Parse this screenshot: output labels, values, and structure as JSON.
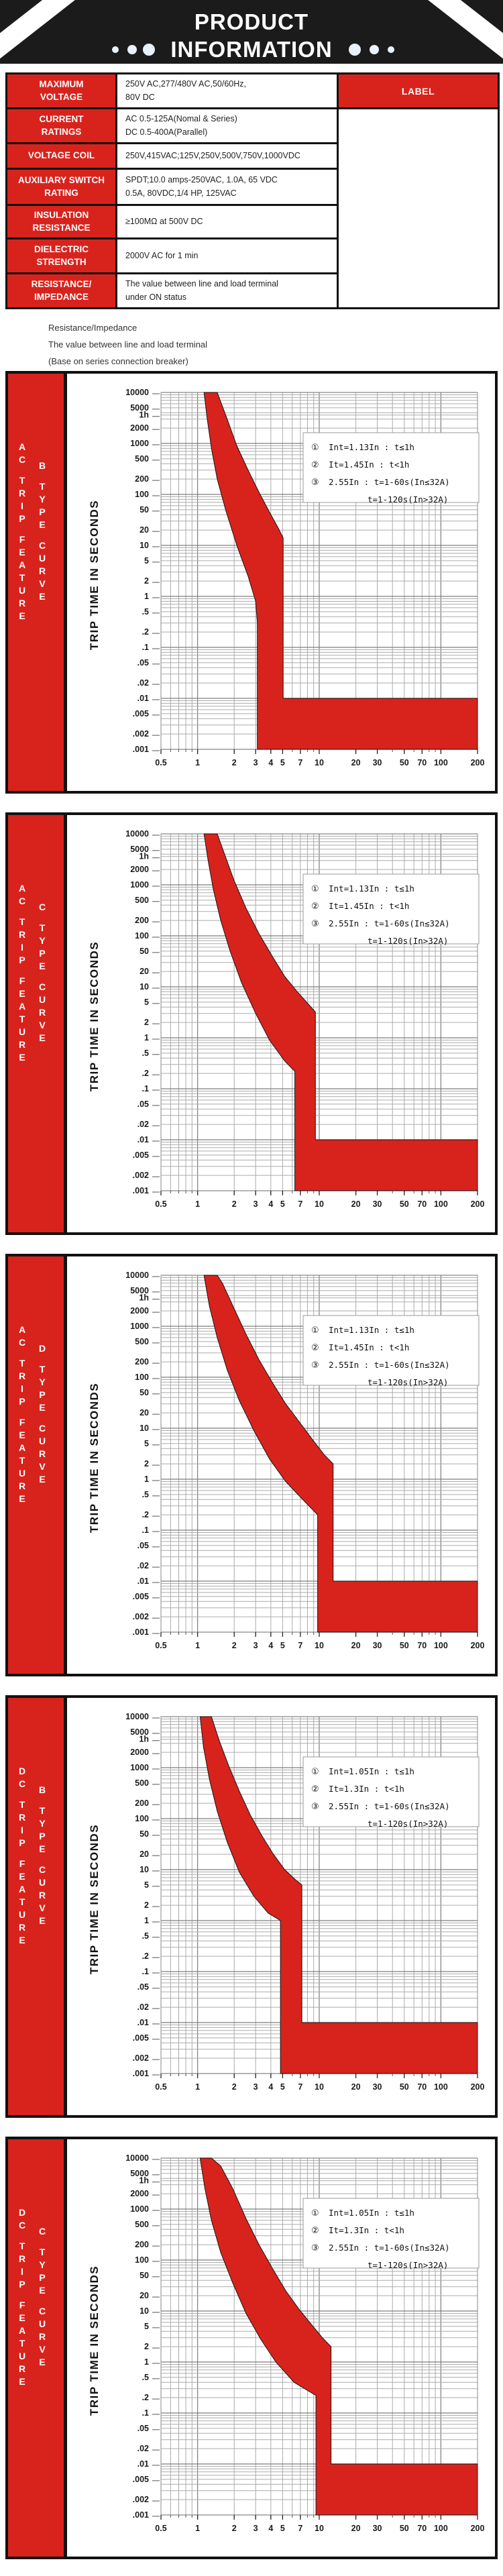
{
  "colors": {
    "red": "#d8231d",
    "black": "#1b1b1b",
    "grid_minor": "#ababab",
    "grid_major": "#7d7d7d"
  },
  "header": {
    "title_line1": "PRODUCT",
    "title_line2": "INFORMATION",
    "decor": {
      "left_dots": 3,
      "right_dots": 3,
      "stripes": "white-diagonal-corners"
    }
  },
  "spec_table": {
    "side_label": "LABEL",
    "rows": [
      {
        "label": "MAXIMUM\nVOLTAGE",
        "value": "250V AC,277/480V AC,50/60Hz,\n80V DC"
      },
      {
        "label": "CURRENT\nRATINGS",
        "value": "AC 0.5-125A(Nomal & Series)\nDC 0.5-400A(Parallel)"
      },
      {
        "label": "VOLTAGE COIL",
        "value": "250V,415VAC;125V,250V,500V,750V,1000VDC"
      },
      {
        "label": "AUXILIARY SWITCH\nRATING",
        "value": "SPDT;10.0 amps-250VAC, 1.0A, 65 VDC\n0.5A, 80VDC,1/4 HP, 125VAC"
      },
      {
        "label": "INSULATION\nRESISTANCE",
        "value": "≥100MΩ at 500V DC"
      },
      {
        "label": "DIELECTRIC\nSTRENGTH",
        "value": "2000V AC for 1 min"
      },
      {
        "label": "RESISTANCE/\nIMPEDANCE",
        "value": "The value between line and load terminal\nunder ON status"
      }
    ]
  },
  "notes": [
    "Resistance/Impedance",
    "The value between line and load terminal",
    "(Base on series connection breaker)"
  ],
  "chart_data": [
    {
      "id": "ac-trip-b-curve",
      "type": "area",
      "sidebar_line1": "AC TRIP FEATURE",
      "sidebar_line2": "B TYPE CURVE",
      "ylabel": "TRIP TIME IN SECONDS",
      "xlim": [
        0.5,
        200
      ],
      "ylim": [
        0.001,
        10000
      ],
      "grid": true,
      "x_tick_labels": [
        "0.5",
        "1",
        "2",
        "3",
        "4",
        "5",
        "7",
        "10",
        "20",
        "30",
        "50",
        "70",
        "100",
        "200"
      ],
      "y_tick_labels": [
        "10000",
        "5000",
        "1h",
        "2000",
        "1000",
        "500",
        "200",
        "100",
        "50",
        "20",
        "10",
        "5",
        "2",
        "1",
        ".5",
        ".2",
        ".1",
        ".05",
        ".02",
        ".01",
        ".005",
        ".002",
        ".001"
      ],
      "legend": [
        {
          "n": "①",
          "t": "Int=1.13In : t≤1h"
        },
        {
          "n": "②",
          "t": "It=1.45In : t<1h"
        },
        {
          "n": "③",
          "t": "2.55In : t=1-60s(In≤32A)"
        },
        {
          "n": "",
          "t": "t=1-120s(In>32A)"
        }
      ],
      "band": [
        [
          1.13,
          10000
        ],
        [
          1.2,
          3000
        ],
        [
          1.3,
          800
        ],
        [
          1.45,
          200
        ],
        [
          1.7,
          50
        ],
        [
          2.1,
          10
        ],
        [
          2.6,
          2.5
        ],
        [
          3.0,
          0.8
        ],
        [
          3.1,
          0.3
        ],
        [
          3.1,
          0.001
        ],
        [
          200,
          0.001
        ],
        [
          200,
          0.01
        ],
        [
          5.05,
          0.01
        ],
        [
          5.05,
          14
        ],
        [
          4.6,
          22
        ],
        [
          3.9,
          45
        ],
        [
          3.2,
          110
        ],
        [
          2.6,
          300
        ],
        [
          2.1,
          900
        ],
        [
          1.75,
          3000
        ],
        [
          1.45,
          10000
        ]
      ]
    },
    {
      "id": "ac-trip-c-curve",
      "type": "area",
      "sidebar_line1": "AC TRIP FEATURE",
      "sidebar_line2": "C TYPE CURVE",
      "ylabel": "TRIP TIME IN SECONDS",
      "xlim": [
        0.5,
        200
      ],
      "ylim": [
        0.001,
        10000
      ],
      "grid": true,
      "x_tick_labels": [
        "0.5",
        "1",
        "2",
        "3",
        "4",
        "5",
        "7",
        "10",
        "20",
        "30",
        "50",
        "70",
        "100",
        "200"
      ],
      "y_tick_labels": [
        "10000",
        "5000",
        "1h",
        "2000",
        "1000",
        "500",
        "200",
        "100",
        "50",
        "20",
        "10",
        "5",
        "2",
        "1",
        ".5",
        ".2",
        ".1",
        ".05",
        ".02",
        ".01",
        ".005",
        ".002",
        ".001"
      ],
      "legend": [
        {
          "n": "①",
          "t": "Int=1.13In : t≤1h"
        },
        {
          "n": "②",
          "t": "It=1.45In : t<1h"
        },
        {
          "n": "③",
          "t": "2.55In : t=1-60s(In≤32A)"
        },
        {
          "n": "",
          "t": "t=1-120s(In>32A)"
        }
      ],
      "band": [
        [
          1.13,
          10000
        ],
        [
          1.22,
          3000
        ],
        [
          1.35,
          800
        ],
        [
          1.55,
          200
        ],
        [
          1.85,
          50
        ],
        [
          2.3,
          12
        ],
        [
          3.0,
          3
        ],
        [
          3.9,
          0.9
        ],
        [
          5.2,
          0.35
        ],
        [
          6.3,
          0.22
        ],
        [
          6.3,
          0.001
        ],
        [
          200,
          0.001
        ],
        [
          200,
          0.01
        ],
        [
          9.3,
          0.01
        ],
        [
          9.3,
          3.2
        ],
        [
          8.2,
          4.5
        ],
        [
          6.6,
          8
        ],
        [
          5.2,
          16
        ],
        [
          4.1,
          40
        ],
        [
          3.2,
          110
        ],
        [
          2.5,
          350
        ],
        [
          2.0,
          1200
        ],
        [
          1.7,
          3500
        ],
        [
          1.45,
          10000
        ]
      ]
    },
    {
      "id": "ac-trip-d-curve",
      "type": "area",
      "sidebar_line1": "AC TRIP FEATURE",
      "sidebar_line2": "D TYPE CURVE",
      "ylabel": "TRIP TIME IN SECONDS",
      "xlim": [
        0.5,
        200
      ],
      "ylim": [
        0.001,
        10000
      ],
      "grid": true,
      "x_tick_labels": [
        "0.5",
        "1",
        "2",
        "3",
        "4",
        "5",
        "7",
        "10",
        "20",
        "30",
        "50",
        "70",
        "100",
        "200"
      ],
      "y_tick_labels": [
        "10000",
        "5000",
        "1h",
        "2000",
        "1000",
        "500",
        "200",
        "100",
        "50",
        "20",
        "10",
        "5",
        "2",
        "1",
        ".5",
        ".2",
        ".1",
        ".05",
        ".02",
        ".01",
        ".005",
        ".002",
        ".001"
      ],
      "legend": [
        {
          "n": "①",
          "t": "Int=1.13In : t≤1h"
        },
        {
          "n": "②",
          "t": "It=1.45In : t<1h"
        },
        {
          "n": "③",
          "t": "2.55In : t=1-60s(In≤32A)"
        },
        {
          "n": "",
          "t": "t=1-120s(In>32A)"
        }
      ],
      "band": [
        [
          1.13,
          10000
        ],
        [
          1.25,
          2500
        ],
        [
          1.45,
          600
        ],
        [
          1.75,
          140
        ],
        [
          2.2,
          35
        ],
        [
          2.9,
          9
        ],
        [
          3.9,
          2.5
        ],
        [
          5.3,
          0.9
        ],
        [
          7.3,
          0.4
        ],
        [
          9.7,
          0.2
        ],
        [
          9.7,
          0.001
        ],
        [
          200,
          0.001
        ],
        [
          200,
          0.01
        ],
        [
          13,
          0.01
        ],
        [
          13,
          2
        ],
        [
          11,
          3
        ],
        [
          8.8,
          6
        ],
        [
          6.9,
          13
        ],
        [
          5.3,
          30
        ],
        [
          4.1,
          80
        ],
        [
          3.2,
          220
        ],
        [
          2.5,
          700
        ],
        [
          2.0,
          2200
        ],
        [
          1.6,
          7000
        ],
        [
          1.45,
          10000
        ]
      ]
    },
    {
      "id": "dc-trip-b-curve",
      "type": "area",
      "sidebar_line1": "DC TRIP FEATURE",
      "sidebar_line2": "B TYPE CURVE",
      "ylabel": "TRIP TIME IN SECONDS",
      "xlim": [
        0.5,
        200
      ],
      "ylim": [
        0.001,
        10000
      ],
      "grid": true,
      "x_tick_labels": [
        "0.5",
        "1",
        "2",
        "3",
        "4",
        "5",
        "7",
        "10",
        "20",
        "30",
        "50",
        "70",
        "100",
        "200"
      ],
      "y_tick_labels": [
        "10000",
        "5000",
        "1h",
        "2000",
        "1000",
        "500",
        "200",
        "100",
        "50",
        "20",
        "10",
        "5",
        "2",
        "1",
        ".5",
        ".2",
        ".1",
        ".05",
        ".02",
        ".01",
        ".005",
        ".002",
        ".001"
      ],
      "legend": [
        {
          "n": "①",
          "t": "Int=1.05In : t≤1h"
        },
        {
          "n": "②",
          "t": "It=1.3In : t<1h"
        },
        {
          "n": "③",
          "t": "2.55In : t=1-60s(In≤32A)"
        },
        {
          "n": "",
          "t": "t=1-120s(In>32A)"
        }
      ],
      "band": [
        [
          1.05,
          10000
        ],
        [
          1.12,
          2500
        ],
        [
          1.25,
          600
        ],
        [
          1.45,
          140
        ],
        [
          1.75,
          35
        ],
        [
          2.2,
          9
        ],
        [
          2.9,
          3
        ],
        [
          3.8,
          1.4
        ],
        [
          4.8,
          1.0
        ],
        [
          4.8,
          0.001
        ],
        [
          200,
          0.001
        ],
        [
          200,
          0.01
        ],
        [
          7.2,
          0.01
        ],
        [
          7.2,
          5
        ],
        [
          6.3,
          6.5
        ],
        [
          5.2,
          10
        ],
        [
          4.2,
          20
        ],
        [
          3.4,
          45
        ],
        [
          2.7,
          120
        ],
        [
          2.2,
          350
        ],
        [
          1.8,
          1100
        ],
        [
          1.5,
          3500
        ],
        [
          1.3,
          10000
        ]
      ]
    },
    {
      "id": "dc-trip-c-curve",
      "type": "area",
      "sidebar_line1": "DC TRIP FEATURE",
      "sidebar_line2": "C TYPE CURVE",
      "ylabel": "TRIP TIME IN SECONDS",
      "xlim": [
        0.5,
        200
      ],
      "ylim": [
        0.001,
        10000
      ],
      "grid": true,
      "x_tick_labels": [
        "0.5",
        "1",
        "2",
        "3",
        "4",
        "5",
        "7",
        "10",
        "20",
        "30",
        "50",
        "70",
        "100",
        "200"
      ],
      "y_tick_labels": [
        "10000",
        "5000",
        "1h",
        "2000",
        "1000",
        "500",
        "200",
        "100",
        "50",
        "20",
        "10",
        "5",
        "2",
        "1",
        ".5",
        ".2",
        ".1",
        ".05",
        ".02",
        ".01",
        ".005",
        ".002",
        ".001"
      ],
      "legend": [
        {
          "n": "①",
          "t": "Int=1.05In : t≤1h"
        },
        {
          "n": "②",
          "t": "It=1.3In : t<1h"
        },
        {
          "n": "③",
          "t": "2.55In : t=1-60s(In≤32A)"
        },
        {
          "n": "",
          "t": "t=1-120s(In>32A)"
        }
      ],
      "band": [
        [
          1.05,
          10000
        ],
        [
          1.15,
          2500
        ],
        [
          1.3,
          600
        ],
        [
          1.55,
          140
        ],
        [
          1.95,
          35
        ],
        [
          2.5,
          9
        ],
        [
          3.3,
          2.8
        ],
        [
          4.4,
          1.0
        ],
        [
          6.2,
          0.4
        ],
        [
          9.4,
          0.22
        ],
        [
          9.4,
          0.001
        ],
        [
          200,
          0.001
        ],
        [
          200,
          0.01
        ],
        [
          12.5,
          0.01
        ],
        [
          12.5,
          2
        ],
        [
          10.6,
          3
        ],
        [
          8.6,
          5.5
        ],
        [
          6.8,
          11
        ],
        [
          5.3,
          25
        ],
        [
          4.1,
          70
        ],
        [
          3.2,
          200
        ],
        [
          2.5,
          650
        ],
        [
          1.95,
          2500
        ],
        [
          1.55,
          7000
        ],
        [
          1.3,
          10000
        ]
      ]
    }
  ]
}
